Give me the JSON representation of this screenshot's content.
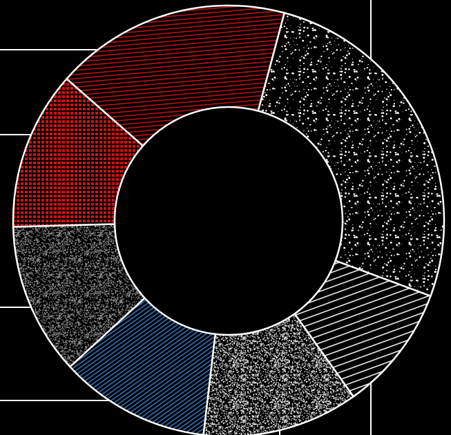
{
  "chart_data": {
    "type": "donut",
    "values": [
      26.5,
      9.5,
      11.7,
      11.3,
      11.4,
      11.9,
      17.7
    ],
    "colors": [
      "#ffffff",
      "#ffffff",
      "#ffffff",
      "#3a7ac8",
      "#a0a0a0",
      "#d01010",
      "#d01010"
    ],
    "patterns": [
      "speckle",
      "diagonal",
      "noise",
      "wavy",
      "noise",
      "grid",
      "lines"
    ]
  }
}
